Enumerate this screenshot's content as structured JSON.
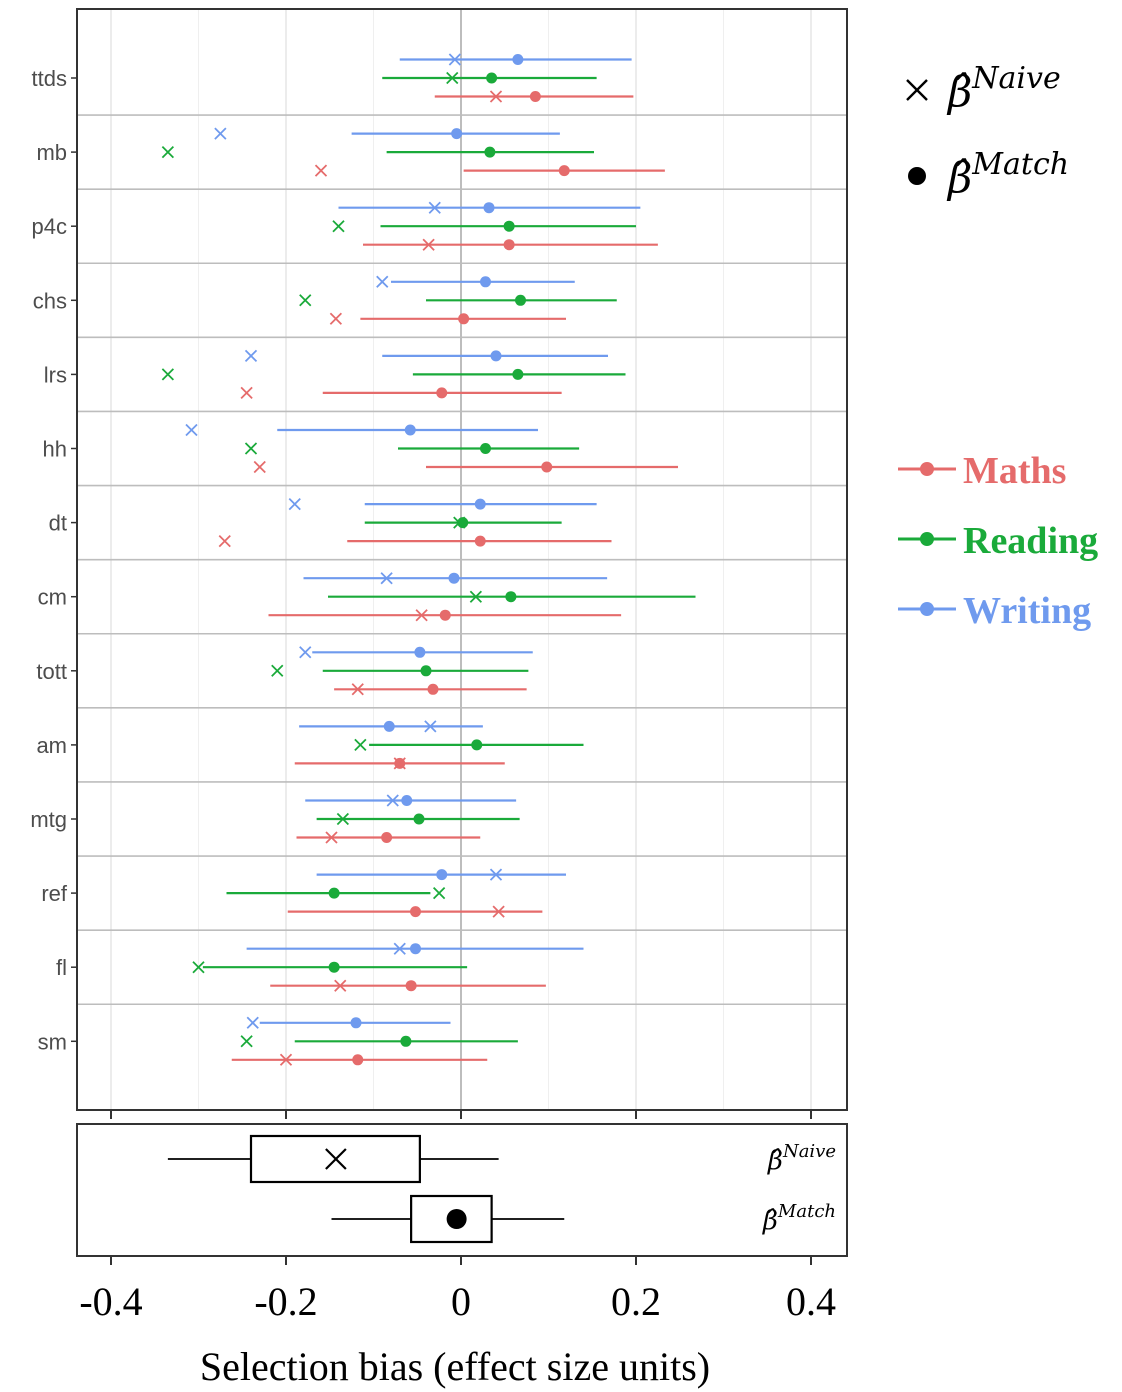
{
  "chart_data": [
    {
      "type": "scatter",
      "subtype": "dot-and-whisker",
      "categories": [
        "ttds",
        "mb",
        "p4c",
        "chs",
        "lrs",
        "hh",
        "dt",
        "cm",
        "tott",
        "am",
        "mtg",
        "ref",
        "fl",
        "sm"
      ],
      "xlabel": "Selection bias (effect size units)",
      "xlim": [
        -0.5,
        0.44
      ],
      "xticks": [
        -0.4,
        -0.2,
        0,
        0.2,
        0.4
      ],
      "xtick_labels": [
        "-0.4",
        "-0.2",
        "0",
        "0.2",
        "0.4"
      ],
      "grid": true,
      "legend_position": "right",
      "series": [
        {
          "name": "Writing",
          "color": "#6f9aee",
          "match": [
            0.065,
            -0.005,
            0.032,
            0.028,
            0.04,
            -0.058,
            0.022,
            -0.008,
            -0.047,
            -0.082,
            -0.062,
            -0.022,
            -0.052,
            -0.12
          ],
          "lo": [
            -0.07,
            -0.125,
            -0.14,
            -0.08,
            -0.09,
            -0.21,
            -0.11,
            -0.18,
            -0.17,
            -0.185,
            -0.178,
            -0.165,
            -0.245,
            -0.23
          ],
          "hi": [
            0.195,
            0.113,
            0.205,
            0.13,
            0.168,
            0.088,
            0.155,
            0.167,
            0.082,
            0.025,
            0.063,
            0.12,
            0.14,
            -0.012
          ],
          "naive": [
            -0.007,
            -0.275,
            -0.03,
            -0.09,
            -0.24,
            -0.308,
            -0.19,
            -0.085,
            -0.178,
            -0.035,
            -0.078,
            0.04,
            -0.07,
            -0.238
          ]
        },
        {
          "name": "Reading",
          "color": "#1aaa3a",
          "match": [
            0.035,
            0.033,
            0.055,
            0.068,
            0.065,
            0.028,
            0.002,
            0.057,
            -0.04,
            0.018,
            -0.048,
            -0.145,
            -0.145,
            -0.063
          ],
          "lo": [
            -0.09,
            -0.085,
            -0.092,
            -0.04,
            -0.055,
            -0.072,
            -0.11,
            -0.152,
            -0.158,
            -0.105,
            -0.165,
            -0.268,
            -0.295,
            -0.19
          ],
          "hi": [
            0.155,
            0.152,
            0.2,
            0.178,
            0.188,
            0.135,
            0.115,
            0.268,
            0.077,
            0.14,
            0.067,
            -0.035,
            0.007,
            0.065
          ],
          "naive": [
            -0.01,
            -0.335,
            -0.14,
            -0.178,
            -0.335,
            -0.24,
            -0.002,
            0.017,
            -0.21,
            -0.115,
            -0.135,
            -0.025,
            -0.3,
            -0.245
          ]
        },
        {
          "name": "Maths",
          "color": "#e56b6b",
          "match": [
            0.085,
            0.118,
            0.055,
            0.003,
            -0.022,
            0.098,
            0.022,
            -0.018,
            -0.032,
            -0.07,
            -0.085,
            -0.052,
            -0.057,
            -0.118
          ],
          "lo": [
            -0.03,
            0.003,
            -0.112,
            -0.115,
            -0.158,
            -0.04,
            -0.13,
            -0.22,
            -0.145,
            -0.19,
            -0.188,
            -0.198,
            -0.218,
            -0.262
          ],
          "hi": [
            0.197,
            0.233,
            0.225,
            0.12,
            0.115,
            0.248,
            0.172,
            0.183,
            0.075,
            0.05,
            0.022,
            0.093,
            0.097,
            0.03
          ],
          "naive": [
            0.04,
            -0.16,
            -0.037,
            -0.143,
            -0.245,
            -0.23,
            -0.27,
            -0.045,
            -0.118,
            -0.07,
            -0.148,
            0.043,
            -0.138,
            -0.2
          ]
        }
      ]
    },
    {
      "type": "boxplot",
      "xlim": [
        -0.5,
        0.44
      ],
      "boxes": [
        {
          "label": "Naive",
          "marker": "cross",
          "whisker_lo": -0.335,
          "q1": -0.24,
          "median": -0.143,
          "q3": -0.047,
          "whisker_hi": 0.043
        },
        {
          "label": "Match",
          "marker": "dot",
          "whisker_lo": -0.148,
          "q1": -0.057,
          "median": -0.005,
          "q3": 0.035,
          "whisker_hi": 0.118
        }
      ]
    }
  ],
  "legend": {
    "estimators": [
      {
        "symbol": "×",
        "label": "β̂",
        "superscript": "Naive",
        "icon": "cross-icon"
      },
      {
        "symbol": "●",
        "label": "β̂",
        "superscript": "Match",
        "icon": "dot-icon"
      }
    ],
    "subjects": [
      "Maths",
      "Reading",
      "Writing"
    ]
  }
}
